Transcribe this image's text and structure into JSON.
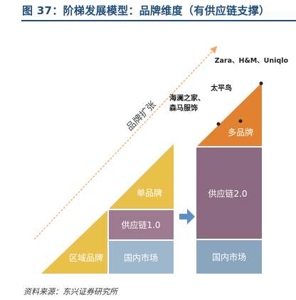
{
  "figure": {
    "title": "图 37：阶梯发展模型：品牌维度（有供应链支撑）",
    "source": "资料来源：东兴证券研究所"
  },
  "arrow": {
    "label": "品牌扩张"
  },
  "left_stack": {
    "top": "单品牌",
    "middle": "供应链1.0",
    "bottom_left": "区域品牌",
    "bottom_right": "国内市场"
  },
  "right_stack": {
    "top": "多品牌",
    "middle": "供应链2.0",
    "bottom": "国内市场"
  },
  "annotations": {
    "top_brands": "Zara、H&M、Uniqlo",
    "mid_brand": "太平鸟",
    "low_brand_line1": "海澜之家、",
    "low_brand_line2": "森马服饰"
  },
  "colors": {
    "title": "#1f4e79",
    "yellow": "#e8c04a",
    "mauve": "#9d7a8f",
    "blue_grey": "#9db8cc",
    "orange": "#e0822f",
    "purple": "#8c6b82",
    "slate": "#8aa6bf",
    "arrow": "#f0a860",
    "block_arrow": "#5b8fc8"
  }
}
